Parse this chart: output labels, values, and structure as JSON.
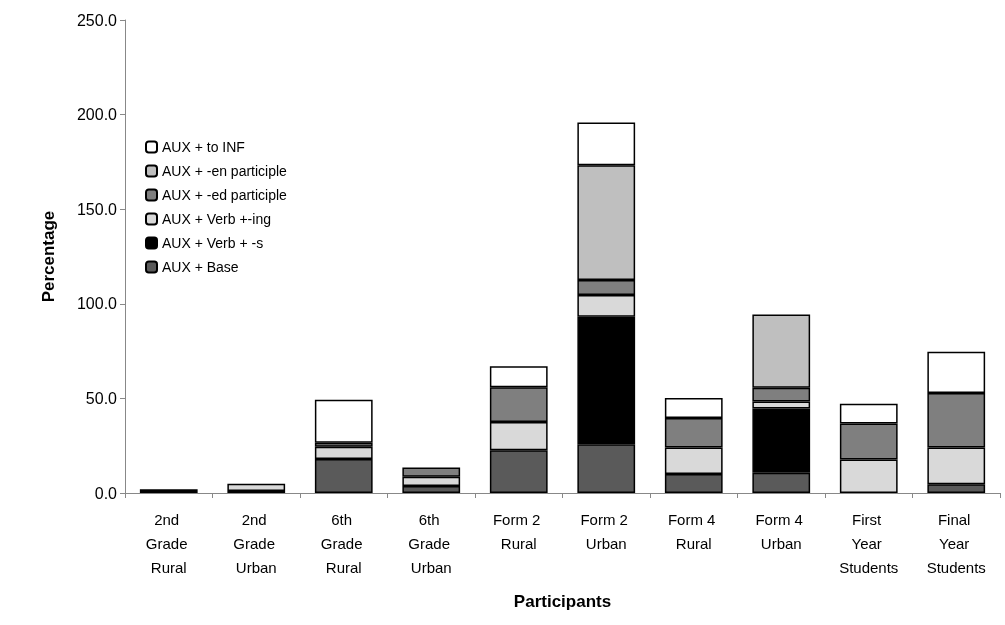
{
  "chart_data": {
    "type": "bar",
    "stacked": true,
    "xlabel": "Participants",
    "ylabel": "Percentage",
    "categories": [
      "2nd Grade Rural",
      "2nd Grade Urban",
      "6th Grade Rural",
      "6th Grade Urban",
      "Form 2 Rural",
      "Form 2 Urban",
      "Form 4 Rural",
      "Form 4 Urban",
      "First Year Students",
      "Final Year Students"
    ],
    "series": [
      {
        "name": "AUX + Base",
        "color": "#5a5a5a",
        "values": [
          null,
          1.0,
          18.0,
          3.7,
          22.6,
          25.8,
          10.0,
          10.7,
          null,
          4.6
        ]
      },
      {
        "name": "AUX + Verb + -s",
        "color": "#000000",
        "values": [
          2.0,
          null,
          null,
          null,
          null,
          67.4,
          null,
          33.9,
          null,
          null
        ]
      },
      {
        "name": "AUX + Verb +-ing",
        "color": "#d9d9d9",
        "values": [
          null,
          3.9,
          6.5,
          4.9,
          14.9,
          11.4,
          14.1,
          3.8,
          17.7,
          19.5
        ]
      },
      {
        "name": "AUX + -ed participle",
        "color": "#7f7f7f",
        "values": [
          null,
          null,
          2.0,
          4.9,
          18.4,
          8.0,
          15.5,
          7.2,
          19.0,
          28.7
        ]
      },
      {
        "name": "AUX + -en participle",
        "color": "#bfbfbf",
        "values": [
          null,
          null,
          null,
          null,
          null,
          60.6,
          null,
          38.8,
          null,
          null
        ]
      },
      {
        "name": "AUX + to INF",
        "color": "#ffffff",
        "values": [
          null,
          null,
          22.8,
          null,
          11.1,
          22.6,
          10.6,
          null,
          10.5,
          21.8
        ]
      }
    ],
    "ylim": [
      0,
      250
    ],
    "yticks": [
      {
        "value": 0,
        "label": "0.0"
      },
      {
        "value": 50,
        "label": "50.0"
      },
      {
        "value": 100,
        "label": "100.0"
      },
      {
        "value": 150,
        "label": "150.0"
      },
      {
        "value": 200,
        "label": "200.0"
      },
      {
        "value": 250,
        "label": "250.0"
      }
    ],
    "grid": false,
    "legend": "top left"
  }
}
